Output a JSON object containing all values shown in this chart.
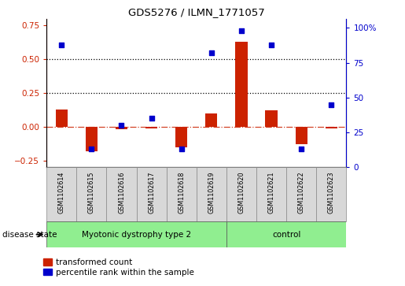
{
  "title": "GDS5276 / ILMN_1771057",
  "samples": [
    "GSM1102614",
    "GSM1102615",
    "GSM1102616",
    "GSM1102617",
    "GSM1102618",
    "GSM1102619",
    "GSM1102620",
    "GSM1102621",
    "GSM1102622",
    "GSM1102623"
  ],
  "transformed_count": [
    0.13,
    -0.18,
    -0.02,
    -0.01,
    -0.15,
    0.1,
    0.63,
    0.12,
    -0.13,
    -0.01
  ],
  "percentile_rank": [
    88,
    13,
    30,
    35,
    13,
    82,
    98,
    88,
    13,
    45
  ],
  "group1_count": 6,
  "group1_label": "Myotonic dystrophy type 2",
  "group2_count": 4,
  "group2_label": "control",
  "group_color": "#90EE90",
  "ylim_left": [
    -0.3,
    0.8
  ],
  "ylim_right": [
    0,
    106.67
  ],
  "yticks_left": [
    -0.25,
    0.0,
    0.25,
    0.5,
    0.75
  ],
  "yticks_right": [
    0,
    25,
    50,
    75,
    100
  ],
  "ytick_labels_right": [
    "0",
    "25",
    "50",
    "75",
    "100%"
  ],
  "bar_color": "#CC2200",
  "dot_color": "#0000CC",
  "tick_bg_color": "#D8D8D8",
  "disease_state_label": "disease state",
  "legend_red": "transformed count",
  "legend_blue": "percentile rank within the sample",
  "bar_width": 0.4
}
